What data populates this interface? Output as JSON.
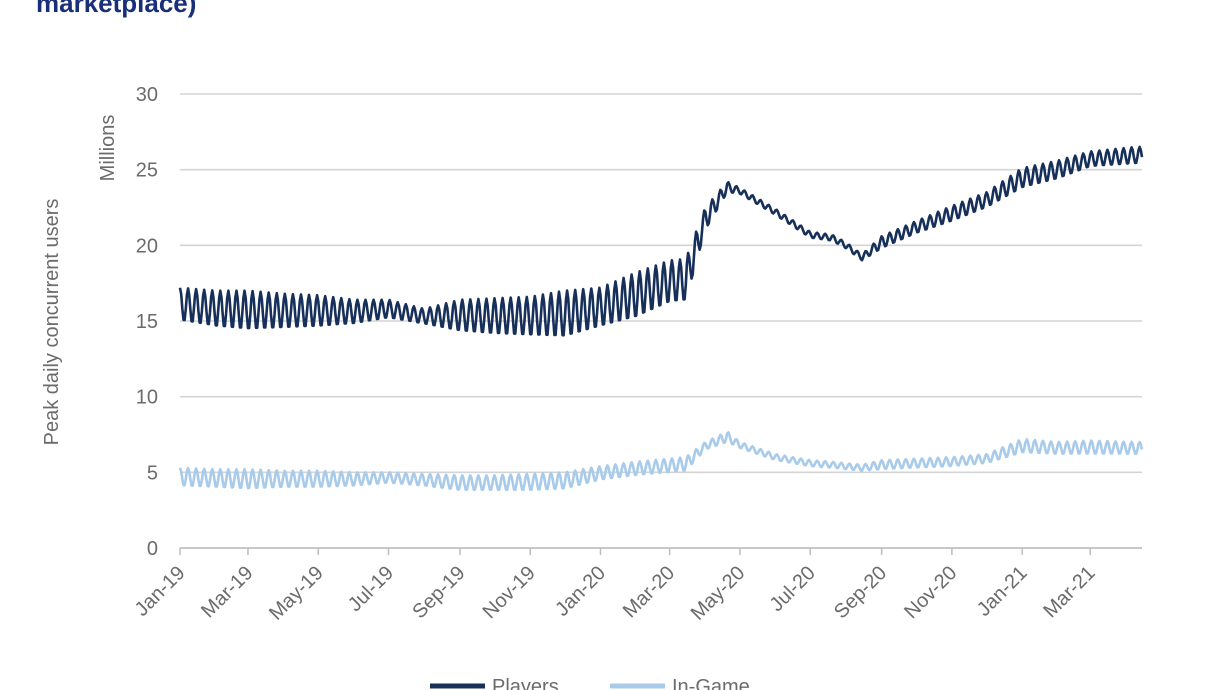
{
  "header": {
    "title_fragment": "marketplace)"
  },
  "chart_data": {
    "type": "line",
    "ylabel": "Peak daily concurrent users",
    "yunit": "Millions",
    "ylim": [
      0,
      30
    ],
    "yticks": [
      0,
      5,
      10,
      15,
      20,
      25,
      30
    ],
    "xlim": [
      "2019-01-01",
      "2021-04-15"
    ],
    "xticks": [
      "Jan-19",
      "Mar-19",
      "May-19",
      "Jul-19",
      "Sep-19",
      "Nov-19",
      "Jan-20",
      "Mar-20",
      "May-20",
      "Jul-20",
      "Sep-20",
      "Nov-20",
      "Jan-21",
      "Mar-21"
    ],
    "xtick_dates": [
      "2019-01-01",
      "2019-03-01",
      "2019-05-01",
      "2019-07-01",
      "2019-09-01",
      "2019-11-01",
      "2020-01-01",
      "2020-03-01",
      "2020-05-01",
      "2020-07-01",
      "2020-09-01",
      "2020-11-01",
      "2021-01-01",
      "2021-03-01"
    ],
    "grid": true,
    "legend_position": "bottom",
    "series": [
      {
        "name": "Players",
        "color": "#17305a",
        "weekly_swing": true,
        "dates": [
          "2019-01-01",
          "2019-02-01",
          "2019-03-01",
          "2019-04-01",
          "2019-05-01",
          "2019-06-01",
          "2019-07-01",
          "2019-08-01",
          "2019-09-01",
          "2019-10-01",
          "2019-11-01",
          "2019-12-01",
          "2020-01-01",
          "2020-02-01",
          "2020-03-01",
          "2020-03-15",
          "2020-04-01",
          "2020-04-20",
          "2020-05-01",
          "2020-06-01",
          "2020-07-01",
          "2020-07-20",
          "2020-08-01",
          "2020-08-15",
          "2020-09-01",
          "2020-10-01",
          "2020-11-01",
          "2020-12-01",
          "2021-01-01",
          "2021-02-01",
          "2021-03-01",
          "2021-04-10"
        ],
        "lows": [
          15.0,
          14.6,
          14.4,
          14.5,
          14.6,
          14.8,
          15.2,
          14.8,
          14.3,
          14.1,
          14.0,
          13.9,
          14.6,
          15.2,
          16.2,
          16.3,
          21.0,
          23.5,
          23.4,
          22.0,
          20.5,
          20.3,
          19.8,
          19.0,
          19.8,
          20.8,
          21.6,
          22.5,
          23.8,
          24.4,
          25.2,
          25.4
        ],
        "highs": [
          17.2,
          17.0,
          17.0,
          16.8,
          16.7,
          16.4,
          16.4,
          15.8,
          16.4,
          16.5,
          16.6,
          17.0,
          17.2,
          18.2,
          19.0,
          19.1,
          22.5,
          24.2,
          23.8,
          22.4,
          20.9,
          20.7,
          20.2,
          19.4,
          20.6,
          21.6,
          22.6,
          23.5,
          25.1,
          25.6,
          26.2,
          26.5
        ]
      },
      {
        "name": "In-Game",
        "color": "#a9cbea",
        "weekly_swing": true,
        "dates": [
          "2019-01-01",
          "2019-02-01",
          "2019-03-01",
          "2019-04-01",
          "2019-05-01",
          "2019-06-01",
          "2019-07-01",
          "2019-08-01",
          "2019-09-01",
          "2019-10-01",
          "2019-11-01",
          "2019-12-01",
          "2020-01-01",
          "2020-02-01",
          "2020-03-01",
          "2020-03-15",
          "2020-04-01",
          "2020-04-20",
          "2020-05-01",
          "2020-06-01",
          "2020-07-01",
          "2020-07-20",
          "2020-08-01",
          "2020-08-15",
          "2020-09-01",
          "2020-10-01",
          "2020-11-01",
          "2020-12-01",
          "2021-01-01",
          "2021-02-01",
          "2021-03-01",
          "2021-04-10"
        ],
        "lows": [
          4.1,
          4.0,
          3.9,
          4.0,
          4.0,
          4.1,
          4.3,
          4.1,
          3.8,
          3.8,
          3.8,
          3.9,
          4.5,
          4.8,
          5.0,
          5.1,
          6.5,
          7.0,
          6.6,
          5.8,
          5.4,
          5.3,
          5.2,
          5.1,
          5.2,
          5.3,
          5.4,
          5.6,
          6.3,
          6.2,
          6.2,
          6.2
        ],
        "highs": [
          5.3,
          5.2,
          5.2,
          5.1,
          5.1,
          5.0,
          5.0,
          4.9,
          4.8,
          4.8,
          4.9,
          5.0,
          5.4,
          5.7,
          5.9,
          6.0,
          7.0,
          7.7,
          7.0,
          6.2,
          5.8,
          5.7,
          5.6,
          5.5,
          5.8,
          5.9,
          6.0,
          6.2,
          7.2,
          7.0,
          7.1,
          7.0
        ]
      }
    ]
  }
}
